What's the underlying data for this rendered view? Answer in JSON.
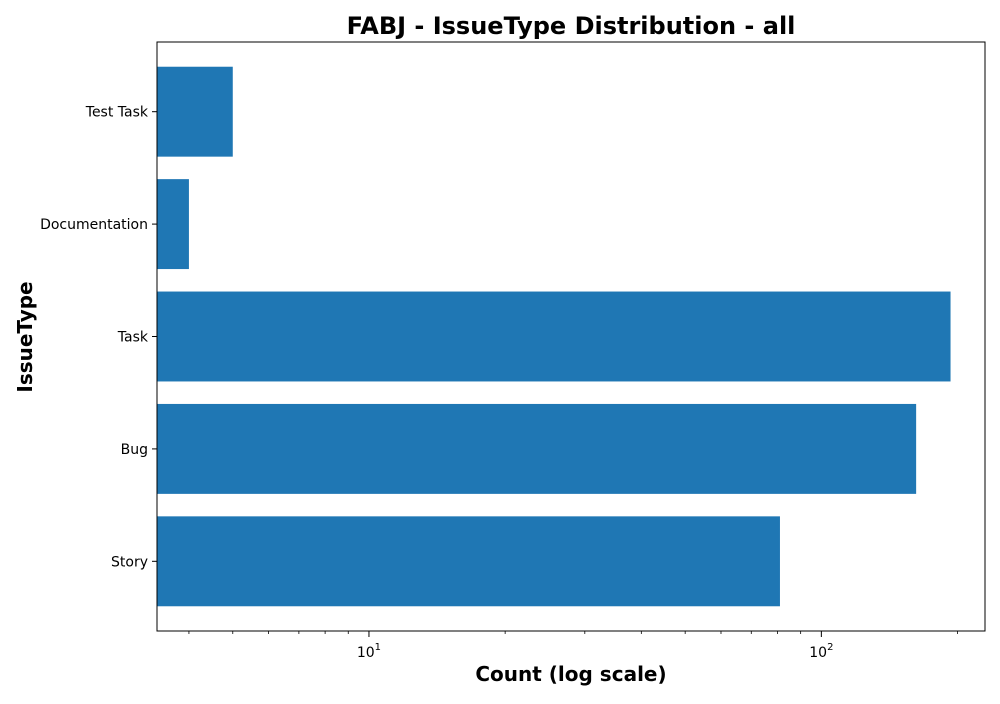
{
  "chart_data": {
    "type": "bar",
    "orientation": "horizontal",
    "title": "FABJ - IssueType Distribution - all",
    "xlabel": "Count (log scale)",
    "ylabel": "IssueType",
    "x_scale": "log",
    "xlim": [
      3.4,
      230
    ],
    "x_ticks": [
      {
        "value": 10,
        "base": "10",
        "exp": "1"
      },
      {
        "value": 100,
        "base": "10",
        "exp": "2"
      }
    ],
    "categories": [
      "Story",
      "Bug",
      "Task",
      "Documentation",
      "Test Task"
    ],
    "values": [
      81,
      162,
      193,
      4,
      5
    ],
    "bar_color": "#1f77b4",
    "grid": false,
    "legend": "none"
  }
}
